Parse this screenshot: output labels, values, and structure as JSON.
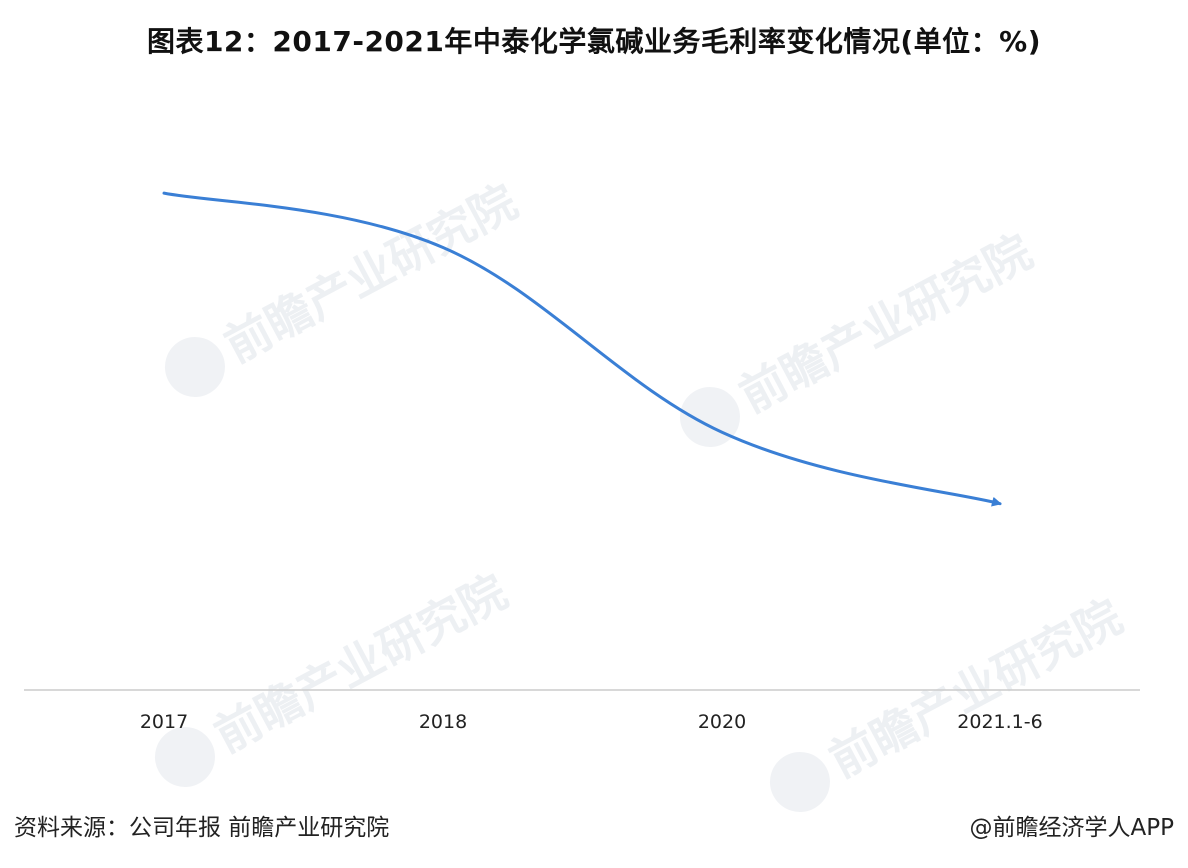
{
  "title": "图表12：2017-2021年中泰化学氯碱业务毛利率变化情况(单位：%)",
  "watermark": "前瞻产业研究院",
  "chart_data": {
    "type": "line",
    "categories": [
      "2017",
      "2018",
      "2020",
      "2021.1-6"
    ],
    "series": [
      {
        "values": [
          32.0,
          28.5,
          16.6,
          12.0
        ]
      }
    ],
    "ylim": [
      0,
      38
    ],
    "grid": false,
    "line_color": "#3a7fd5",
    "axis_color": "#cccccc"
  },
  "footer": {
    "source": "资料来源：公司年报 前瞻产业研究院",
    "brand": "@前瞻经济学人APP"
  }
}
